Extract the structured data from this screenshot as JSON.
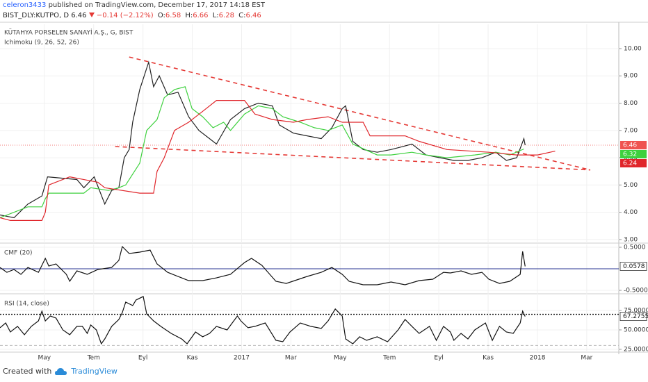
{
  "header": {
    "user": "celeron3433",
    "published": "published on TradingView.com, December 17, 2017 14:18 EST",
    "symbol": "BIST_DLY:KUTPO, D",
    "last": 6.46,
    "change": "−0.14 (−2.12%)",
    "ohlc": [
      {
        "label": "O:",
        "value": 6.58
      },
      {
        "label": "H:",
        "value": 6.66
      },
      {
        "label": "L:",
        "value": 6.28
      },
      {
        "label": "C:",
        "value": 6.46
      }
    ]
  },
  "footer": {
    "created": "Created with",
    "brand": "TradingView"
  },
  "chart_data": [
    {
      "type": "line",
      "title": "KÜTAHYA PORSELEN SANAYİ A.Ş., G, BIST",
      "subtitle": "Ichimoku (9, 26, 52, 26)",
      "xlim": [
        2.2,
        27.3
      ],
      "ylim": [
        2.87,
        10.89
      ],
      "grid": true,
      "price_line_color": "#ef5350",
      "yticks": [
        {
          "value": 10,
          "label": "10.00"
        },
        {
          "value": 9,
          "label": "9.00"
        },
        {
          "value": 8,
          "label": "8.00"
        },
        {
          "value": 7,
          "label": "7.00"
        },
        {
          "value": 6,
          "label": "6.00"
        },
        {
          "value": 5,
          "label": "5.00"
        },
        {
          "value": 4,
          "label": "4.00"
        },
        {
          "value": 3,
          "label": "3.00"
        }
      ],
      "series": [
        {
          "color": "#222222",
          "x": [
            2.2,
            2.77,
            3.33,
            3.9,
            4.13,
            5.32,
            5.6,
            6.02,
            6.45,
            6.73,
            7.02,
            7.24,
            7.44,
            7.58,
            7.87,
            8.23,
            8.43,
            8.66,
            9.0,
            9.42,
            9.85,
            10.27,
            10.7,
            10.98,
            11.55,
            12.12,
            12.68,
            13.25,
            13.53,
            14.1,
            14.66,
            15.23,
            15.66,
            16.08,
            16.22,
            16.51,
            16.93,
            17.5,
            18.06,
            18.49,
            18.91,
            19.48,
            20.05,
            20.61,
            21.18,
            21.75,
            22.31,
            22.74,
            23.16,
            23.45,
            23.5
          ],
          "values": [
            3.9,
            3.8,
            4.3,
            4.6,
            5.3,
            5.2,
            4.9,
            5.3,
            4.3,
            4.8,
            4.9,
            6.0,
            6.3,
            7.3,
            8.5,
            9.5,
            8.6,
            9.0,
            8.3,
            8.4,
            7.5,
            7.0,
            6.7,
            6.5,
            7.4,
            7.8,
            8.0,
            7.9,
            7.2,
            6.9,
            6.8,
            6.7,
            7.1,
            7.8,
            7.9,
            6.6,
            6.3,
            6.2,
            6.3,
            6.4,
            6.5,
            6.1,
            6.0,
            5.9,
            5.9,
            6.0,
            6.2,
            5.9,
            6.0,
            6.7,
            6.46
          ]
        },
        {
          "color": "#3ed13e",
          "x": [
            2.2,
            3.33,
            3.9,
            4.04,
            4.18,
            5.6,
            5.88,
            6.59,
            7.02,
            7.3,
            7.87,
            8.15,
            8.57,
            8.86,
            9.28,
            9.71,
            9.99,
            10.42,
            10.84,
            11.27,
            11.55,
            12.12,
            12.68,
            13.25,
            13.67,
            14.38,
            14.95,
            15.51,
            16.08,
            16.51,
            17.5,
            18.06,
            18.91,
            19.48,
            20.33,
            21.46,
            22.31,
            22.88,
            23.45
          ],
          "values": [
            3.8,
            4.2,
            4.2,
            4.5,
            4.7,
            4.7,
            4.9,
            4.8,
            4.9,
            5.0,
            5.8,
            7.0,
            7.4,
            8.2,
            8.5,
            8.6,
            7.8,
            7.5,
            7.1,
            7.3,
            7.0,
            7.6,
            7.9,
            7.8,
            7.5,
            7.3,
            7.1,
            7.0,
            7.2,
            6.5,
            6.1,
            6.1,
            6.2,
            6.1,
            6.0,
            6.1,
            6.2,
            6.1,
            6.32
          ]
        },
        {
          "color": "#e0262b",
          "x": [
            2.2,
            2.62,
            3.9,
            4.04,
            4.18,
            5.03,
            6.17,
            6.45,
            7.87,
            8.43,
            8.57,
            8.86,
            9.28,
            9.85,
            10.42,
            10.98,
            12.12,
            12.54,
            13.25,
            14.1,
            14.66,
            15.51,
            16.08,
            16.93,
            17.21,
            18.63,
            19.2,
            20.33,
            22.03,
            23.16,
            24.01,
            24.72
          ],
          "values": [
            3.8,
            3.7,
            3.7,
            4.0,
            5.0,
            5.3,
            5.1,
            4.9,
            4.7,
            4.7,
            5.5,
            6.0,
            7.0,
            7.3,
            7.7,
            8.1,
            8.1,
            7.6,
            7.4,
            7.3,
            7.4,
            7.5,
            7.3,
            7.3,
            6.8,
            6.8,
            6.6,
            6.3,
            6.2,
            6.1,
            6.1,
            6.24
          ]
        }
      ],
      "trendlines": [
        {
          "color": "#e53935",
          "x": [
            7.44,
            26.14
          ],
          "values": [
            9.69,
            5.55
          ]
        },
        {
          "color": "#e53935",
          "x": [
            6.87,
            26.14
          ],
          "values": [
            6.41,
            5.55
          ]
        }
      ]
    },
    {
      "type": "line",
      "title": "CMF (20)",
      "xlim": [
        2.2,
        27.3
      ],
      "ylim": [
        -0.58,
        0.565
      ],
      "grid": true,
      "yticks": [
        {
          "value": 0.5,
          "label": "0.5000"
        },
        {
          "value": -0.5,
          "label": "-0.5000"
        }
      ],
      "hline": 0,
      "hline_color": "#283593",
      "series": [
        {
          "color": "#111111",
          "x": [
            2.2,
            2.48,
            2.77,
            3.05,
            3.33,
            3.76,
            4.04,
            4.18,
            4.47,
            4.89,
            5.03,
            5.32,
            5.74,
            6.17,
            6.73,
            7.02,
            7.16,
            7.44,
            7.87,
            8.29,
            8.57,
            9.0,
            9.57,
            9.85,
            10.42,
            10.98,
            11.55,
            12.12,
            12.4,
            12.82,
            13.39,
            13.81,
            14.24,
            14.66,
            15.23,
            15.66,
            16.08,
            16.36,
            16.93,
            17.5,
            18.06,
            18.63,
            19.2,
            19.76,
            20.19,
            20.47,
            20.9,
            21.32,
            21.75,
            22.03,
            22.46,
            22.88,
            23.3,
            23.4,
            23.5
          ],
          "values": [
            0.032,
            -0.081,
            -0.016,
            -0.129,
            0.032,
            -0.081,
            0.242,
            0.065,
            0.113,
            -0.129,
            -0.29,
            -0.048,
            -0.129,
            -0.016,
            0.032,
            0.194,
            0.516,
            0.355,
            0.387,
            0.435,
            0.113,
            -0.081,
            -0.21,
            -0.274,
            -0.274,
            -0.21,
            -0.129,
            0.145,
            0.242,
            0.081,
            -0.29,
            -0.339,
            -0.258,
            -0.177,
            -0.081,
            0.032,
            -0.129,
            -0.29,
            -0.371,
            -0.371,
            -0.306,
            -0.371,
            -0.274,
            -0.242,
            -0.081,
            -0.097,
            -0.048,
            -0.129,
            -0.081,
            -0.242,
            -0.339,
            -0.29,
            -0.129,
            0.403,
            0.0578
          ]
        }
      ]
    },
    {
      "type": "line",
      "title": "RSI (14, close)",
      "xlim": [
        2.2,
        27.3
      ],
      "ylim": [
        21.4,
        94.6
      ],
      "grid": true,
      "yticks": [
        {
          "value": 75,
          "label": "75.0000"
        },
        {
          "value": 50,
          "label": "50.0000"
        },
        {
          "value": 25,
          "label": "25.0000"
        }
      ],
      "bands": [
        70,
        30
      ],
      "xticks": [
        {
          "value": 4,
          "label": "May"
        },
        {
          "value": 6,
          "label": "Tem"
        },
        {
          "value": 8,
          "label": "Eyl"
        },
        {
          "value": 10,
          "label": "Kas"
        },
        {
          "value": 12,
          "label": "2017"
        },
        {
          "value": 14,
          "label": "Mar"
        },
        {
          "value": 16,
          "label": "May"
        },
        {
          "value": 18,
          "label": "Tem"
        },
        {
          "value": 20,
          "label": "Eyl"
        },
        {
          "value": 22,
          "label": "Kas"
        },
        {
          "value": 24,
          "label": "2018"
        },
        {
          "value": 26,
          "label": "Mar"
        }
      ],
      "series": [
        {
          "color": "#111111",
          "x": [
            2.2,
            2.43,
            2.62,
            2.91,
            3.19,
            3.47,
            3.76,
            3.9,
            4.04,
            4.24,
            4.47,
            4.75,
            5.03,
            5.32,
            5.54,
            5.74,
            5.88,
            6.11,
            6.31,
            6.45,
            6.73,
            7.02,
            7.16,
            7.3,
            7.58,
            7.72,
            8.01,
            8.15,
            8.43,
            8.72,
            9.14,
            9.57,
            9.79,
            10.13,
            10.42,
            10.7,
            10.98,
            11.41,
            11.83,
            11.97,
            12.26,
            12.54,
            12.96,
            13.39,
            13.67,
            13.96,
            14.38,
            14.81,
            15.23,
            15.51,
            15.8,
            16.08,
            16.22,
            16.51,
            16.79,
            17.07,
            17.5,
            17.92,
            18.35,
            18.63,
            18.91,
            19.2,
            19.62,
            19.9,
            20.19,
            20.47,
            20.61,
            20.9,
            21.18,
            21.46,
            21.89,
            22.17,
            22.46,
            22.74,
            23.02,
            23.3,
            23.4,
            23.5
          ],
          "values": [
            52.7,
            58.9,
            47.3,
            54.5,
            43.8,
            54.5,
            61.6,
            74.1,
            61.6,
            67.9,
            65.2,
            50,
            43.8,
            54.5,
            54.5,
            45.5,
            56.3,
            50,
            32.1,
            38.4,
            54.5,
            63.4,
            72.3,
            85.7,
            81.3,
            88.4,
            92.9,
            70.5,
            61.6,
            54.5,
            45.5,
            38.4,
            32.1,
            47.3,
            41.1,
            45.5,
            54.5,
            50,
            67.9,
            61.6,
            52.7,
            54.5,
            58.9,
            36.6,
            34.8,
            47.3,
            58.9,
            54.5,
            51.8,
            61.6,
            76.8,
            67.9,
            38.4,
            32.1,
            41.1,
            36.6,
            41.1,
            34.8,
            50,
            63.4,
            54.5,
            45.5,
            54.5,
            36.6,
            54.5,
            47.3,
            36.6,
            45.5,
            38.4,
            50,
            58.9,
            36.6,
            54.5,
            47.3,
            45.5,
            58.9,
            74.1,
            67.2755
          ]
        }
      ]
    }
  ]
}
